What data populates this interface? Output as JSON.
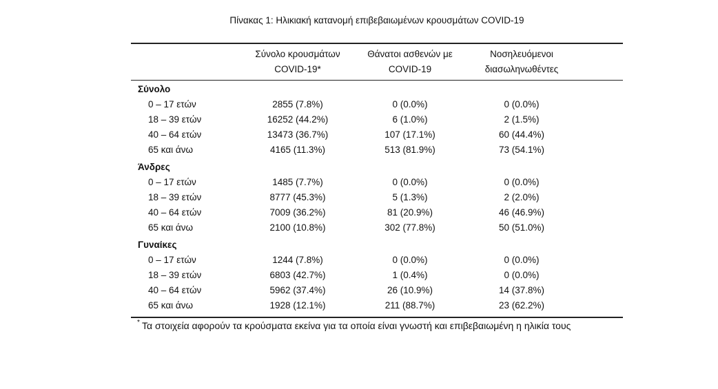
{
  "title": "Πίνακας 1: Ηλικιακή κατανομή επιβεβαιωμένων κρουσμάτων COVID-19",
  "table": {
    "headers": [
      [
        "Σύνολο κρουσμάτων",
        "COVID-19*"
      ],
      [
        "Θάνατοι ασθενών με",
        "COVID-19"
      ],
      [
        "Νοσηλευόμενοι",
        "διασωληνωθέντες"
      ]
    ],
    "groups": [
      {
        "name": "Σύνολο",
        "rows": [
          [
            "0 – 17 ετών",
            "2855 (7.8%)",
            "0 (0.0%)",
            "0 (0.0%)"
          ],
          [
            "18 – 39 ετών",
            "16252 (44.2%)",
            "6 (1.0%)",
            "2 (1.5%)"
          ],
          [
            "40 – 64 ετών",
            "13473 (36.7%)",
            "107 (17.1%)",
            "60 (44.4%)"
          ],
          [
            "65 και άνω",
            "4165 (11.3%)",
            "513 (81.9%)",
            "73 (54.1%)"
          ]
        ]
      },
      {
        "name": "Άνδρες",
        "rows": [
          [
            "0 – 17 ετών",
            "1485 (7.7%)",
            "0 (0.0%)",
            "0 (0.0%)"
          ],
          [
            "18 – 39 ετών",
            "8777 (45.3%)",
            "5 (1.3%)",
            "2 (2.0%)"
          ],
          [
            "40 – 64 ετών",
            "7009 (36.2%)",
            "81 (20.9%)",
            "46 (46.9%)"
          ],
          [
            "65 και άνω",
            "2100 (10.8%)",
            "302 (77.8%)",
            "50 (51.0%)"
          ]
        ]
      },
      {
        "name": "Γυναίκες",
        "rows": [
          [
            "0 – 17 ετών",
            "1244 (7.8%)",
            "0 (0.0%)",
            "0 (0.0%)"
          ],
          [
            "18 – 39 ετών",
            "6803 (42.7%)",
            "1 (0.4%)",
            "0 (0.0%)"
          ],
          [
            "40 – 64 ετών",
            "5962 (37.4%)",
            "26 (10.9%)",
            "14 (37.8%)"
          ],
          [
            "65 και άνω",
            "1928 (12.1%)",
            "211 (88.7%)",
            "23 (62.2%)"
          ]
        ]
      }
    ]
  },
  "footnote": {
    "mark": "*",
    "text": "Τα στοιχεία αφορούν τα κρούσματα εκείνα για τα οποία είναι γνωστή και επιβεβαιωμένη η ηλικία τους"
  }
}
